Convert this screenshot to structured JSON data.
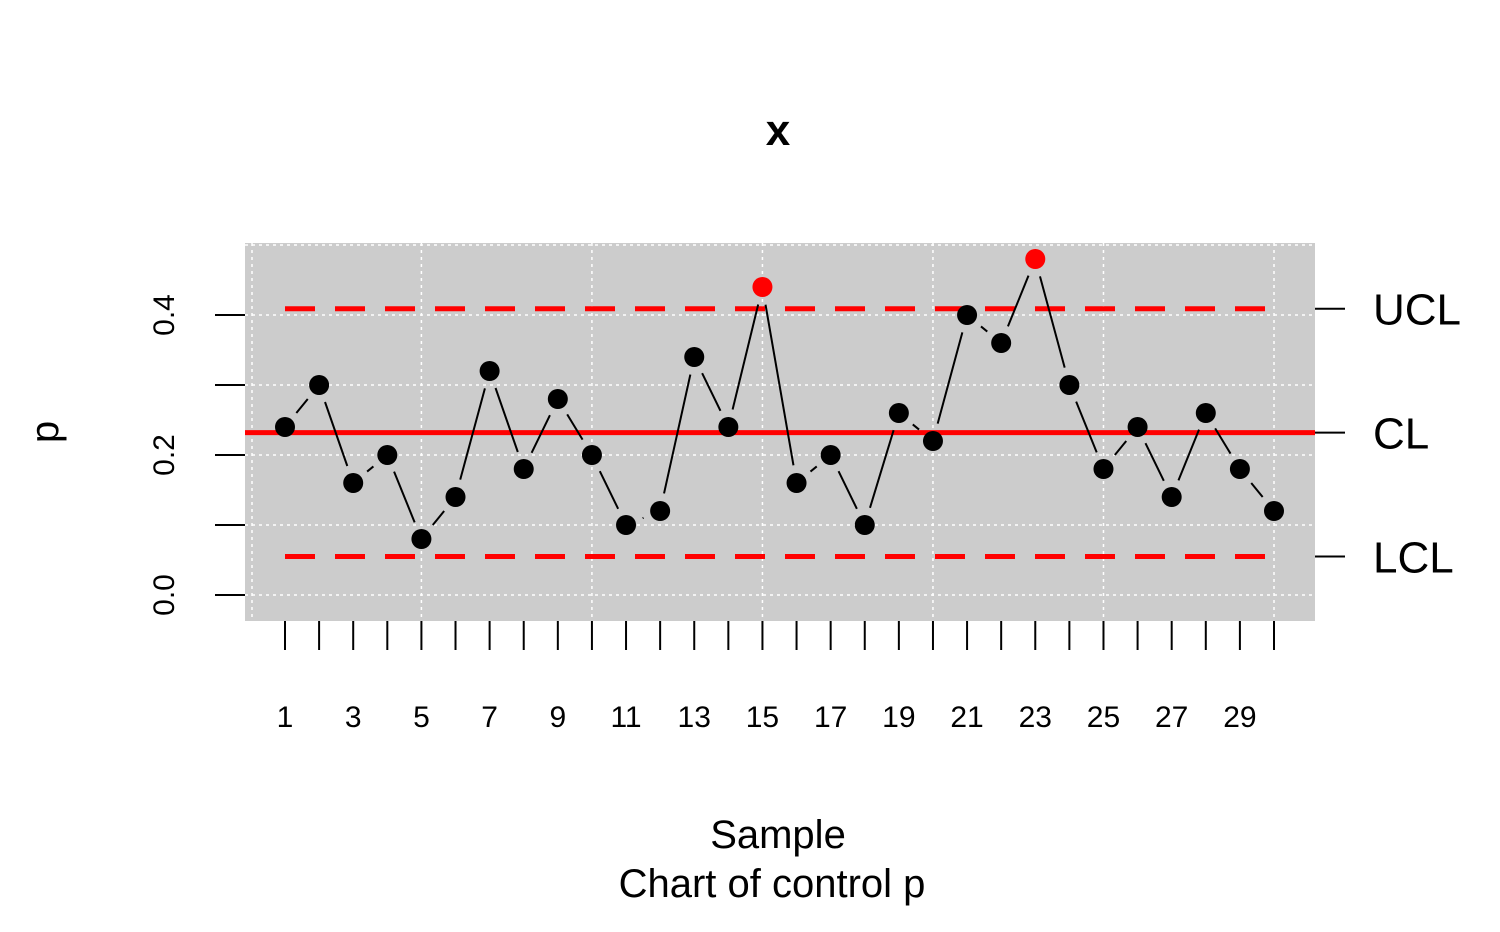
{
  "chart_data": {
    "type": "line",
    "title": "x",
    "xlabel": "Sample",
    "subtitle": "Chart of control p",
    "ylabel": "p",
    "x": [
      1,
      2,
      3,
      4,
      5,
      6,
      7,
      8,
      9,
      10,
      11,
      12,
      13,
      14,
      15,
      16,
      17,
      18,
      19,
      20,
      21,
      22,
      23,
      24,
      25,
      26,
      27,
      28,
      29,
      30
    ],
    "values": [
      0.24,
      0.3,
      0.16,
      0.2,
      0.08,
      0.14,
      0.32,
      0.18,
      0.28,
      0.2,
      0.1,
      0.12,
      0.34,
      0.24,
      0.44,
      0.16,
      0.2,
      0.1,
      0.26,
      0.22,
      0.4,
      0.36,
      0.48,
      0.3,
      0.18,
      0.24,
      0.14,
      0.26,
      0.18,
      0.12
    ],
    "out_of_control_samples": [
      15,
      23
    ],
    "xlim": [
      1,
      30
    ],
    "ylim": [
      0,
      0.5
    ],
    "x_tick_labels": [
      "1",
      "3",
      "5",
      "7",
      "9",
      "11",
      "13",
      "15",
      "17",
      "19",
      "21",
      "23",
      "25",
      "27",
      "29"
    ],
    "y_tick_labels": [
      "0.0",
      "0.2",
      "0.4"
    ],
    "control_limits": [
      {
        "label": "UCL",
        "value": 0.409,
        "style": "dashed"
      },
      {
        "label": "CL",
        "value": 0.232,
        "style": "solid"
      },
      {
        "label": "LCL",
        "value": 0.055,
        "style": "dashed"
      }
    ],
    "grid": true,
    "colors": {
      "panel_background": "#cccccc",
      "grid": "#ffffff",
      "points": "#000000",
      "out_of_control": "#ff0000",
      "limits": "#ff0000"
    }
  }
}
